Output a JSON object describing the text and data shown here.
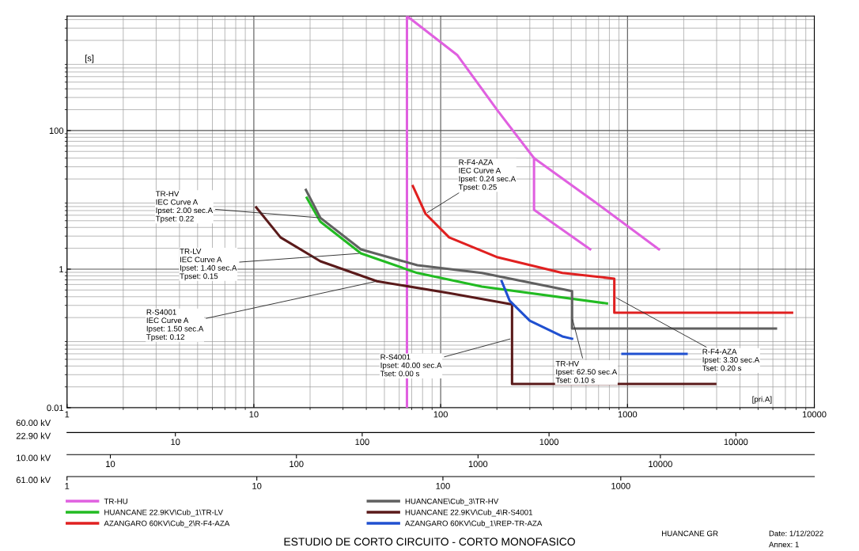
{
  "chart_data": [
    {
      "type": "line",
      "title": "ESTUDIO DE CORTO CIRCUITO - CORTO MONOFASICO",
      "xlabel": "60.00 kV",
      "ylabel": "[s]",
      "log": "xy",
      "xlim": [
        1,
        10000
      ],
      "xticks": [
        1,
        10,
        100,
        1000,
        10000
      ],
      "ylim": [
        0.01,
        4500
      ],
      "yticks": [
        0.01,
        1,
        100
      ],
      "grid": true,
      "legend": "bottom",
      "marker": "none",
      "line_style": "solid",
      "series": [
        {
          "name": "TR-HU",
          "color": "#e060e0",
          "x": [
            66,
            66,
            123,
            202,
            316,
            666,
            1473,
            null,
            316,
            316,
            631
          ],
          "values": [
            0.01,
            4500,
            1220,
            193,
            40,
            9.4,
            1.93,
            null,
            40,
            7.2,
            1.93
          ]
        },
        {
          "name": "HUANCANE 22.9KV\\Cub_1\\TR-LV",
          "color": "#22bb22",
          "x": [
            19.2,
            22.7,
            37.4,
            75,
            166,
            776
          ],
          "values": [
            10.7,
            4.85,
            1.69,
            0.88,
            0.56,
            0.32
          ]
        },
        {
          "name": "AZANGARO 60KV\\Cub_2\\R-F4-AZA",
          "color": "#e02020",
          "x": [
            71,
            83,
            111,
            202,
            448,
            850,
            850,
            7600
          ],
          "values": [
            15.8,
            6.3,
            2.87,
            1.48,
            0.88,
            0.73,
            0.235,
            0.235
          ]
        },
        {
          "name": "HUANCANE\\Cub_3\\TR-HV",
          "color": "#606060",
          "x": [
            19,
            22.7,
            37.4,
            75,
            166,
            505,
            505,
            6230
          ],
          "values": [
            13.9,
            5.5,
            1.93,
            1.14,
            0.88,
            0.48,
            0.139,
            0.139
          ]
        },
        {
          "name": "HUANCANE 22.9KV\\Cub_4\\R-S4001",
          "color": "#5a1a1a",
          "x": [
            10.3,
            13.9,
            22.7,
            45.6,
            111,
            241,
            241,
            2950
          ],
          "values": [
            7.8,
            2.87,
            1.3,
            0.67,
            0.45,
            0.31,
            0.022,
            0.022
          ]
        },
        {
          "name": "AZANGARO 60KV\\Cub_1\\REP-TR-AZA",
          "color": "#2050d0",
          "x": [
            212,
            234,
            300,
            448,
            505,
            700,
            940,
            2070
          ],
          "values": [
            0.67,
            0.35,
            0.18,
            0.107,
            0.099,
            null,
            0.06,
            0.06
          ]
        }
      ],
      "annotations": [
        {
          "text": "R-F4-AZA\nIEC Curve A\nIpset: 0.24 sec.A\nTpset: 0.25",
          "x": 83,
          "y": 6.3
        },
        {
          "text": "TR-HV\nIEC Curve A\nIpset: 2.00 sec.A\nTpset: 0.22",
          "x": 22.7,
          "y": 5.5
        },
        {
          "text": "TR-LV\nIEC Curve A\nIpset: 1.40 sec.A\nTpset: 0.15",
          "x": 37.4,
          "y": 1.69
        },
        {
          "text": "R-S4001\nIEC Curve A\nIpset: 1.50 sec.A\nTpset: 0.12",
          "x": 45.6,
          "y": 0.67
        },
        {
          "text": "R-S4001\nIpset: 40.00 sec.A\nTset: 0.00 s",
          "x": 241,
          "y": 0.1
        },
        {
          "text": "TR-HV\nIpset: 62.50 sec.A\nTset: 0.10 s",
          "x": 505,
          "y": 0.2
        },
        {
          "text": "R-F4-AZA\nIpset: 3.30 sec.A\nTset: 0.20 s",
          "x": 850,
          "y": 0.4
        },
        "[pri.A]",
        "HUANCANE GR",
        "Date: 1/12/2022",
        "Annex: 1"
      ]
    },
    {
      "type": "other",
      "annotations": [
        "22.90 kV",
        "10",
        "100",
        "1000",
        "10000"
      ]
    },
    {
      "type": "other",
      "annotations": [
        "10.00 kV",
        "10",
        "100",
        "1000",
        "10000"
      ]
    },
    {
      "type": "other",
      "annotations": [
        "61.00 kV",
        "1",
        "10",
        "100",
        "1000"
      ]
    }
  ]
}
